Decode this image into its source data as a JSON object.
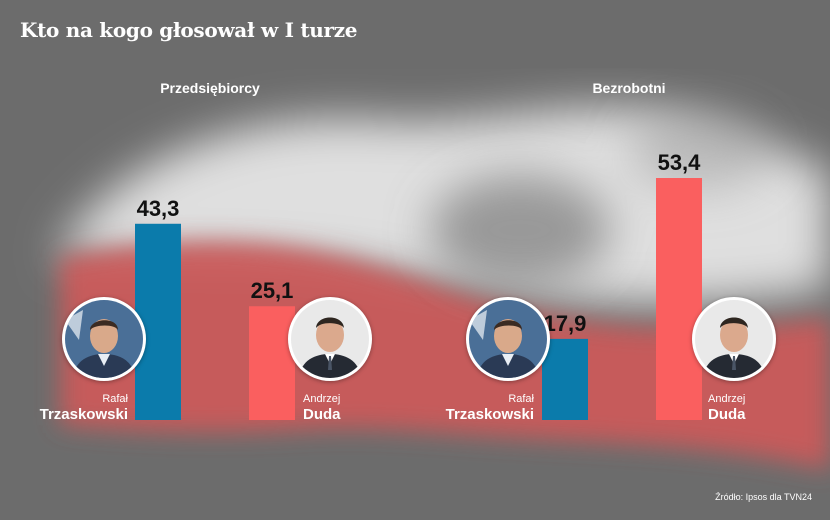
{
  "title": "Kto na kogo głosował w I turze",
  "source": "Źródło: Ipsos dla TVN24",
  "colors": {
    "trzaskowski": "#0b7bab",
    "duda": "#fa5f5f",
    "background": "#6e6e6e",
    "flag_red": "#cf5a5a",
    "flag_white": "#ffffff"
  },
  "groups": [
    {
      "label": "Przedsiębiorcy",
      "candidates": [
        {
          "first_name": "Rafał",
          "last_name": "Trzaskowski",
          "value_label": "43,3",
          "color_key": "trzaskowski"
        },
        {
          "first_name": "Andrzej",
          "last_name": "Duda",
          "value_label": "25,1",
          "color_key": "duda"
        }
      ]
    },
    {
      "label": "Bezrobotni",
      "candidates": [
        {
          "first_name": "Rafał",
          "last_name": "Trzaskowski",
          "value_label": "17,9",
          "color_key": "trzaskowski"
        },
        {
          "first_name": "Andrzej",
          "last_name": "Duda",
          "value_label": "53,4",
          "color_key": "duda"
        }
      ]
    }
  ],
  "chart_data": {
    "type": "bar",
    "title": "Kto na kogo głosował w I turze",
    "categories": [
      "Przedsiębiorcy",
      "Bezrobotni"
    ],
    "series": [
      {
        "name": "Rafał Trzaskowski",
        "values": [
          43.3,
          17.9
        ]
      },
      {
        "name": "Andrzej Duda",
        "values": [
          25.1,
          53.4
        ]
      }
    ],
    "ylim": [
      0,
      53.4
    ],
    "grid": false,
    "legend": "none"
  }
}
